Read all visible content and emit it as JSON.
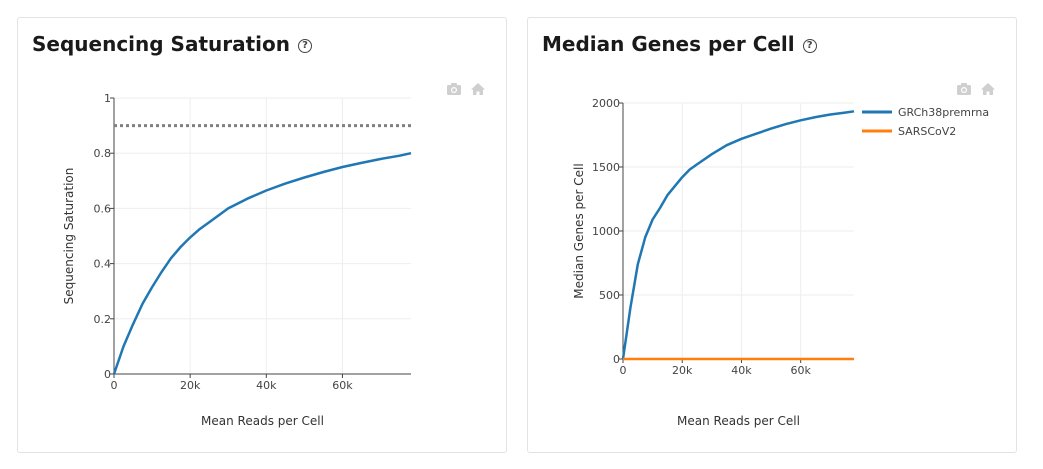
{
  "cards": {
    "saturation": {
      "title": "Sequencing Saturation",
      "help": "?"
    },
    "genes": {
      "title": "Median Genes per Cell",
      "help": "?"
    }
  },
  "toolbar": {
    "camera_icon": "camera-icon",
    "home_icon": "home-icon"
  },
  "colors": {
    "blue": "#1f77b4",
    "orange": "#ff7f0e",
    "dotted": "#808080"
  },
  "chart_data": [
    {
      "type": "line",
      "title": "",
      "xlabel": "Mean Reads per Cell",
      "ylabel": "Sequencing Saturation",
      "xlim": [
        0,
        78000
      ],
      "ylim": [
        0,
        1
      ],
      "x_ticks": [
        0,
        20000,
        40000,
        60000
      ],
      "x_tick_labels": [
        "0",
        "20k",
        "40k",
        "60k"
      ],
      "y_ticks": [
        0,
        0.2,
        0.4,
        0.6,
        0.8,
        1
      ],
      "y_tick_labels": [
        "0",
        "0.2",
        "0.4",
        "0.6",
        "0.8",
        "1"
      ],
      "reference_line": {
        "y": 0.9,
        "style": "dotted"
      },
      "series": [
        {
          "x": [
            0,
            2500,
            5000,
            7500,
            10000,
            12500,
            15000,
            17500,
            20000,
            22500,
            25000,
            30000,
            35000,
            40000,
            45000,
            50000,
            55000,
            60000,
            65000,
            70000,
            75000,
            78000
          ],
          "y": [
            0,
            0.1,
            0.18,
            0.255,
            0.315,
            0.37,
            0.42,
            0.46,
            0.495,
            0.525,
            0.55,
            0.6,
            0.635,
            0.665,
            0.69,
            0.712,
            0.732,
            0.75,
            0.765,
            0.779,
            0.791,
            0.8
          ]
        }
      ]
    },
    {
      "type": "line",
      "title": "",
      "xlabel": "Mean Reads per Cell",
      "ylabel": "Median Genes per Cell",
      "xlim": [
        0,
        78000
      ],
      "ylim": [
        0,
        2000
      ],
      "x_ticks": [
        0,
        20000,
        40000,
        60000
      ],
      "x_tick_labels": [
        "0",
        "20k",
        "40k",
        "60k"
      ],
      "y_ticks": [
        0,
        500,
        1000,
        1500,
        2000
      ],
      "y_tick_labels": [
        "0",
        "500",
        "1000",
        "1500",
        "2000"
      ],
      "legend_position": "top-right",
      "series": [
        {
          "name": "GRCh38premrna",
          "x": [
            0,
            2500,
            5000,
            7500,
            10000,
            12500,
            15000,
            17500,
            20000,
            22500,
            25000,
            30000,
            35000,
            40000,
            45000,
            50000,
            55000,
            60000,
            65000,
            70000,
            75000,
            78000
          ],
          "y": [
            0,
            400,
            740,
            950,
            1090,
            1180,
            1280,
            1350,
            1420,
            1480,
            1520,
            1600,
            1670,
            1720,
            1760,
            1800,
            1835,
            1865,
            1890,
            1910,
            1925,
            1935
          ]
        },
        {
          "name": "SARSCoV2",
          "x": [
            0,
            78000
          ],
          "y": [
            0,
            0
          ]
        }
      ]
    }
  ]
}
